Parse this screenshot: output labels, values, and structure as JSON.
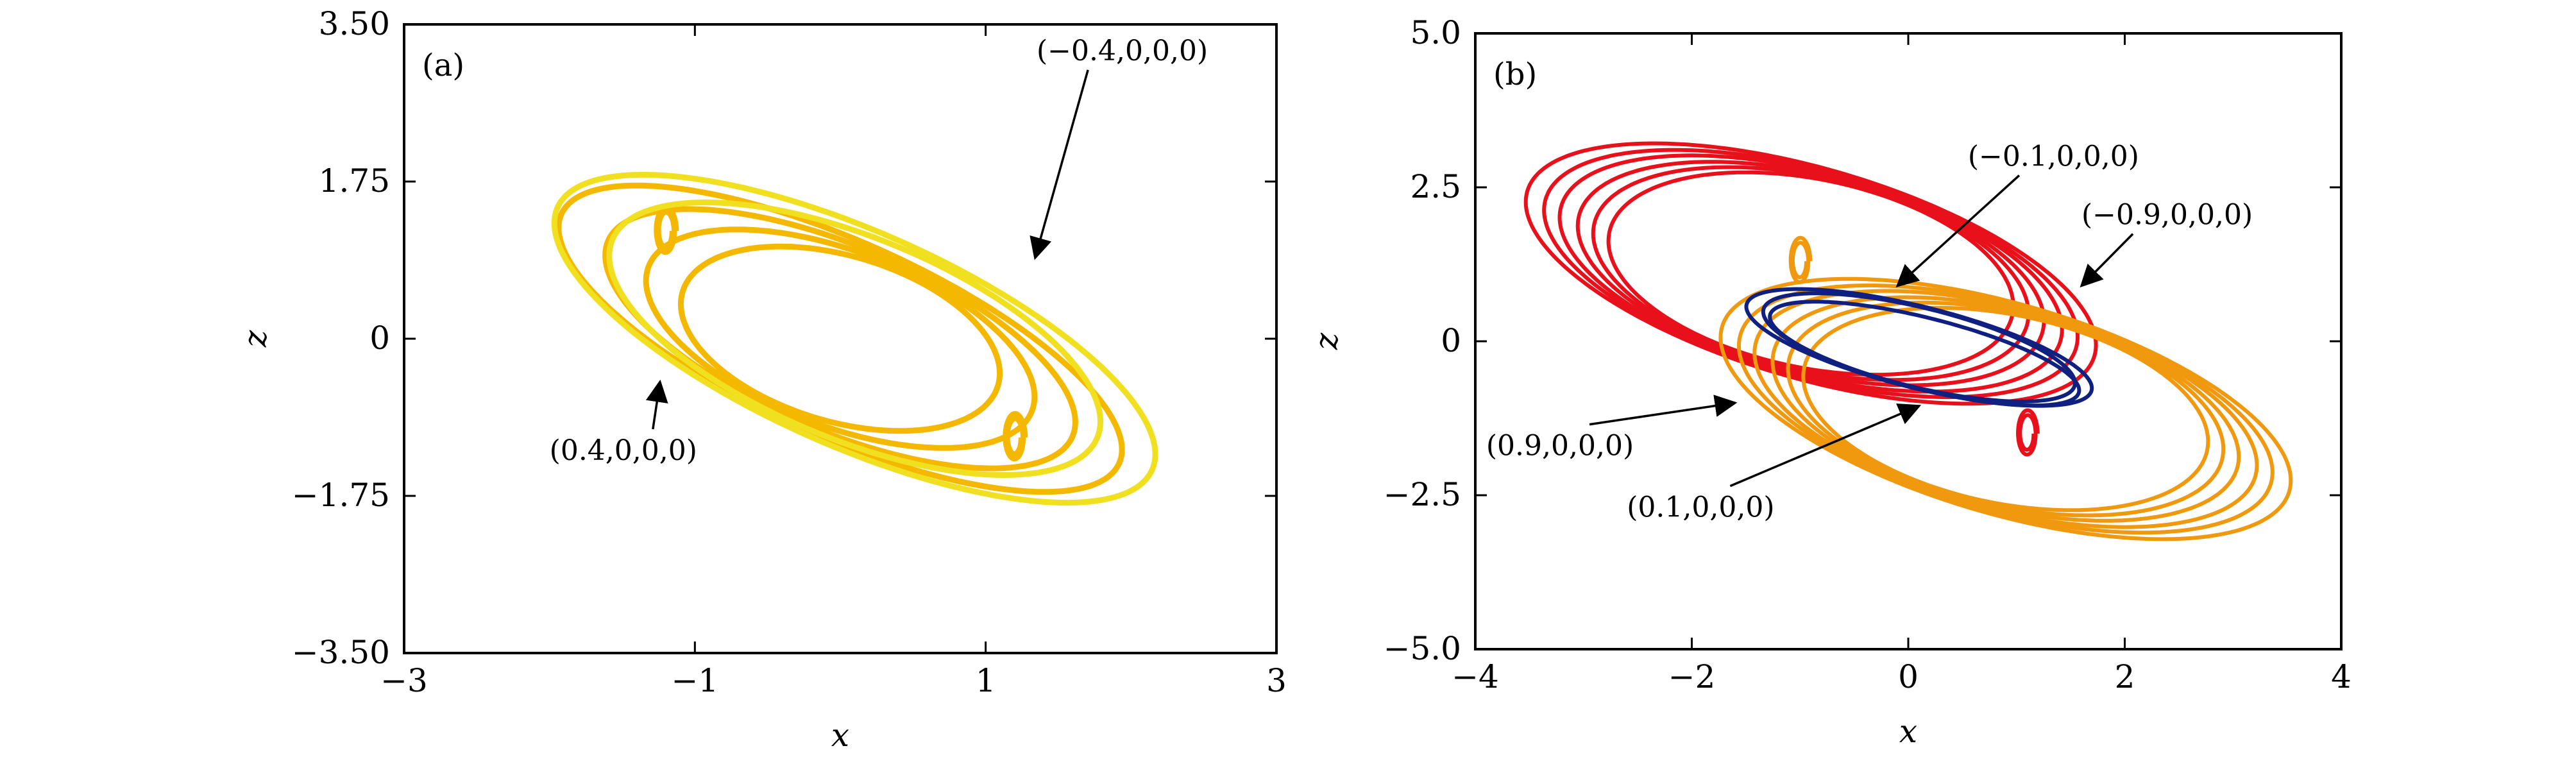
{
  "chart_data": [
    {
      "type": "line",
      "panel_label": "(a)",
      "xlabel": "x",
      "ylabel": "z",
      "xlim": [
        -3,
        3
      ],
      "ylim": [
        -3.5,
        3.5
      ],
      "xticks": [
        -3,
        -1,
        1,
        3
      ],
      "xtick_labels": [
        "−3",
        "−1",
        "1",
        "3"
      ],
      "yticks": [
        -3.5,
        -1.75,
        0,
        1.75,
        3.5
      ],
      "ytick_labels": [
        "−3.50",
        "−1.75",
        "0",
        "1.75",
        "3.50"
      ],
      "grid": false,
      "series": [
        {
          "label": "(0.4,0,0,0)",
          "color": "#F5B800",
          "attractor": {
            "center": [
              0.0,
              0.0
            ],
            "a": 2.4,
            "b": 0.95,
            "angle": 40,
            "loops": [
              1.0,
              0.82,
              0.66,
              0.52
            ],
            "spiral_points": [
              [
                -1.2,
                1.2
              ],
              [
                1.2,
                -1.1
              ]
            ]
          },
          "annotation": {
            "text": "(0.4,0,0,0)",
            "text_at": [
              -2.0,
              -1.35
            ],
            "arrow_to": [
              -1.24,
              -0.48
            ]
          }
        },
        {
          "label": "(−0.4,0,0,0)",
          "color": "#F0E020",
          "attractor": {
            "center": [
              0.1,
              0.0
            ],
            "a": 2.55,
            "b": 1.05,
            "angle": 40,
            "loops": [
              1.0,
              0.8
            ],
            "spiral_points": []
          },
          "annotation": {
            "text": "(−0.4,0,0,0)",
            "text_at": [
              1.35,
              3.1
            ],
            "arrow_to": [
              1.34,
              0.9
            ]
          }
        }
      ]
    },
    {
      "type": "line",
      "panel_label": "(b)",
      "xlabel": "x",
      "ylabel": "z",
      "xlim": [
        -4,
        4
      ],
      "ylim": [
        -5,
        5
      ],
      "xticks": [
        -4,
        -2,
        0,
        2,
        4
      ],
      "xtick_labels": [
        "−4",
        "−2",
        "0",
        "2",
        "4"
      ],
      "yticks": [
        -5,
        -2.5,
        0,
        2.5,
        5
      ],
      "ytick_labels": [
        "−5.0",
        "−2.5",
        "0",
        "2.5",
        "5.0"
      ],
      "grid": false,
      "series": [
        {
          "label": "(0.9,0,0,0)",
          "color": "#E8101A",
          "attractor": {
            "center": [
              -0.9,
              1.1
            ],
            "a": 3.0,
            "b": 1.55,
            "angle": 34,
            "loops": [
              1.0,
              0.93,
              0.87,
              0.8,
              0.74,
              0.68
            ],
            "spiral_points": [
              [
                1.1,
                -1.5
              ]
            ]
          },
          "annotation": {
            "text": "(0.9,0,0,0)",
            "text_at": [
              -3.9,
              -1.85
            ],
            "arrow_to": [
              -1.6,
              -1.0
            ]
          }
        },
        {
          "label": "(−0.9,0,0,0)",
          "color": "#F0980E",
          "attractor": {
            "center": [
              0.9,
              -1.1
            ],
            "a": 3.0,
            "b": 1.55,
            "angle": 34,
            "loops": [
              1.0,
              0.93,
              0.87,
              0.8,
              0.74,
              0.68
            ],
            "spiral_points": [
              [
                -1.0,
                1.3
              ]
            ]
          },
          "annotation": {
            "text": "(−0.9,0,0,0)",
            "text_at": [
              1.6,
              1.9
            ],
            "arrow_to": [
              1.6,
              0.9
            ]
          }
        },
        {
          "label": "(−0.1,0,0,0)",
          "color": "#102080",
          "attractor": {
            "center": [
              0.1,
              -0.1
            ],
            "a": 1.75,
            "b": 0.62,
            "angle": 26,
            "loops": [
              1.0,
              0.9
            ],
            "spiral_points": []
          },
          "annotation": {
            "text": "(−0.1,0,0,0)",
            "text_at": [
              0.55,
              2.85
            ],
            "arrow_to": [
              -0.1,
              0.9
            ]
          }
        },
        {
          "label": "(0.1,0,0,0)",
          "color": "#102080",
          "attractor": {
            "center": [
              0.15,
              -0.2
            ],
            "a": 1.65,
            "b": 0.55,
            "angle": 26,
            "loops": [
              0.95
            ],
            "spiral_points": []
          },
          "annotation": {
            "text": "(0.1,0,0,0)",
            "text_at": [
              -2.6,
              -2.85
            ],
            "arrow_to": [
              0.1,
              -1.05
            ]
          }
        }
      ]
    }
  ]
}
